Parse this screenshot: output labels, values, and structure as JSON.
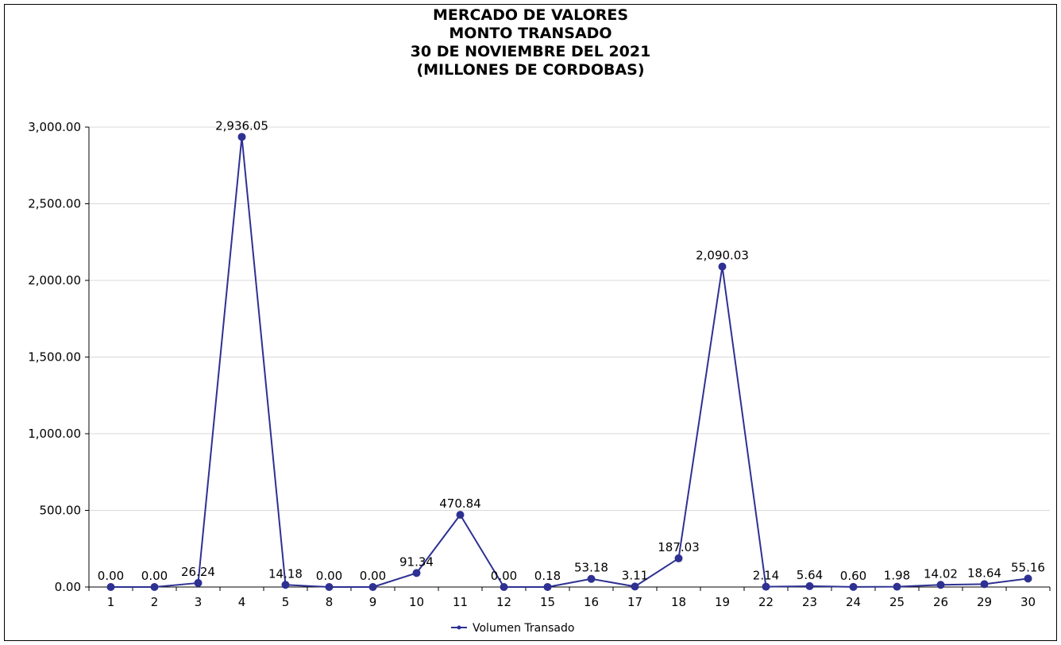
{
  "chart_data": {
    "type": "line",
    "title_lines": [
      "MERCADO DE VALORES",
      "MONTO TRANSADO",
      "30 DE NOVIEMBRE DEL 2021",
      "(MILLONES DE CORDOBAS)"
    ],
    "categories": [
      "1",
      "2",
      "3",
      "4",
      "5",
      "8",
      "9",
      "10",
      "11",
      "12",
      "15",
      "16",
      "17",
      "18",
      "19",
      "22",
      "23",
      "24",
      "25",
      "26",
      "29",
      "30"
    ],
    "series": [
      {
        "name": "Volumen Transado",
        "values": [
          0.0,
          0.0,
          26.24,
          2936.05,
          14.18,
          0.0,
          0.0,
          91.34,
          470.84,
          0.0,
          0.18,
          53.18,
          3.11,
          187.03,
          2090.03,
          2.14,
          5.64,
          0.6,
          1.98,
          14.02,
          18.64,
          55.16
        ],
        "data_labels": [
          "0.00",
          "0.00",
          "26.24",
          "2,936.05",
          "14.18",
          "0.00",
          "0.00",
          "91.34",
          "470.84",
          "0.00",
          "0.18",
          "53.18",
          "3.11",
          "187.03",
          "2,090.03",
          "2.14",
          "5.64",
          "0.60",
          "1.98",
          "14.02",
          "18.64",
          "55.16"
        ]
      }
    ],
    "ylim": [
      0,
      3000
    ],
    "yticks": [
      0,
      500,
      1000,
      1500,
      2000,
      2500,
      3000
    ],
    "ytick_labels": [
      "0.00",
      "500.00",
      "1,000.00",
      "1,500.00",
      "2,000.00",
      "2,500.00",
      "3,000.00"
    ],
    "grid": true,
    "legend_position": "bottom",
    "colors": {
      "series": "#2e3192",
      "grid": "#d9d9d9",
      "axis": "#000000"
    }
  }
}
